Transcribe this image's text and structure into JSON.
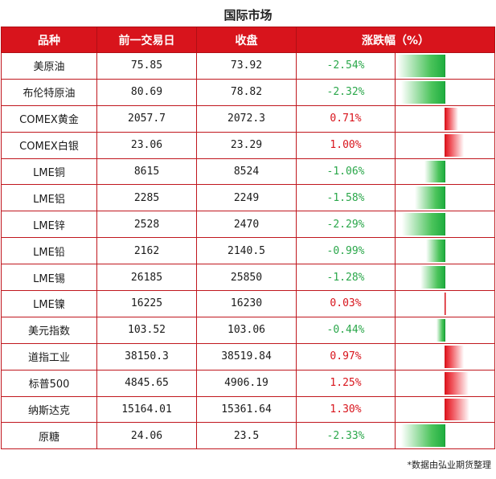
{
  "title": "国际市场",
  "headers": [
    "品种",
    "前一交易日",
    "收盘",
    "涨跌幅（%）"
  ],
  "rows": [
    {
      "name": "美原油",
      "prev": "75.85",
      "close": "73.92",
      "change": "-2.54%",
      "value": -2.54
    },
    {
      "name": "布伦特原油",
      "prev": "80.69",
      "close": "78.82",
      "change": "-2.32%",
      "value": -2.32
    },
    {
      "name": "COMEX黄金",
      "prev": "2057.7",
      "close": "2072.3",
      "change": "0.71%",
      "value": 0.71
    },
    {
      "name": "COMEX白银",
      "prev": "23.06",
      "close": "23.29",
      "change": "1.00%",
      "value": 1.0
    },
    {
      "name": "LME铜",
      "prev": "8615",
      "close": "8524",
      "change": "-1.06%",
      "value": -1.06
    },
    {
      "name": "LME铝",
      "prev": "2285",
      "close": "2249",
      "change": "-1.58%",
      "value": -1.58
    },
    {
      "name": "LME锌",
      "prev": "2528",
      "close": "2470",
      "change": "-2.29%",
      "value": -2.29
    },
    {
      "name": "LME铅",
      "prev": "2162",
      "close": "2140.5",
      "change": "-0.99%",
      "value": -0.99
    },
    {
      "name": "LME锡",
      "prev": "26185",
      "close": "25850",
      "change": "-1.28%",
      "value": -1.28
    },
    {
      "name": "LME镍",
      "prev": "16225",
      "close": "16230",
      "change": "0.03%",
      "value": 0.03
    },
    {
      "name": "美元指数",
      "prev": "103.52",
      "close": "103.06",
      "change": "-0.44%",
      "value": -0.44
    },
    {
      "name": "道指工业",
      "prev": "38150.3",
      "close": "38519.84",
      "change": "0.97%",
      "value": 0.97
    },
    {
      "name": "标普500",
      "prev": "4845.65",
      "close": "4906.19",
      "change": "1.25%",
      "value": 1.25
    },
    {
      "name": "纳斯达克",
      "prev": "15164.01",
      "close": "15361.64",
      "change": "1.30%",
      "value": 1.3
    },
    {
      "name": "原糖",
      "prev": "24.06",
      "close": "23.5",
      "change": "-2.33%",
      "value": -2.33
    }
  ],
  "footnote": "*数据由弘业期货整理",
  "colors": {
    "header_bg": "#d8141c",
    "negative": "#2aa74a",
    "positive": "#d8141c"
  }
}
